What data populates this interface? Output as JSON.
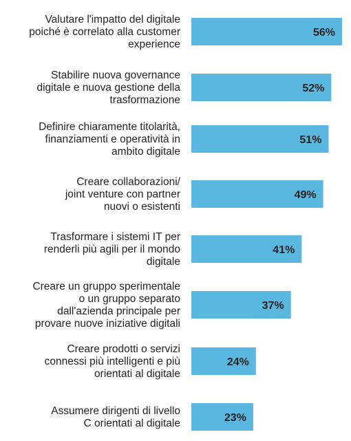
{
  "chart_data": {
    "type": "bar",
    "orientation": "horizontal",
    "bar_color": "#5ab7df",
    "categories": [
      [
        "Valutare l'impatto del digitale",
        "poiché è correlato alla customer",
        "experience"
      ],
      [
        "Stabilire nuova governance",
        "digitale e nuova gestione della",
        "trasformazione"
      ],
      [
        "Definire chiaramente titolarità,",
        "finanziamenti e operatività in",
        "ambito digitale"
      ],
      [
        "Creare collaborazioni/",
        "joint venture con partner",
        "nuovi o esistenti"
      ],
      [
        "Trasformare i sistemi IT per",
        "renderli più agili per il mondo",
        "digitale"
      ],
      [
        "Creare un gruppo sperimentale",
        "o un gruppo separato",
        "dall'azienda principale per",
        "provare nuove iniziative digitali"
      ],
      [
        "Creare prodotti o servizi",
        "connessi più intelligenti e più",
        "orientati al digitale"
      ],
      [
        "Assumere dirigenti di livello",
        "C orientati al digitale"
      ]
    ],
    "values": [
      56,
      52,
      51,
      49,
      41,
      37,
      24,
      23
    ],
    "value_labels": [
      "56%",
      "52%",
      "51%",
      "49%",
      "41%",
      "37%",
      "24%",
      "23%"
    ],
    "xlim": [
      0,
      56
    ]
  }
}
